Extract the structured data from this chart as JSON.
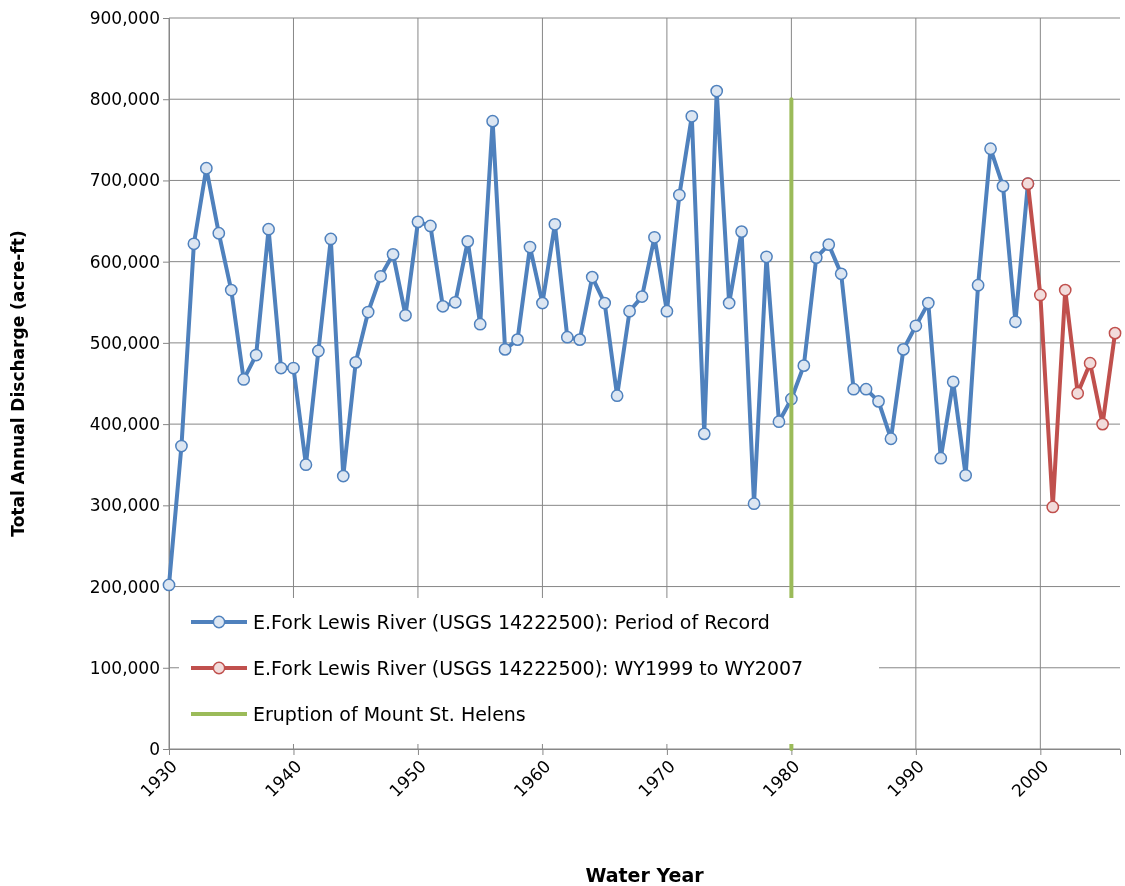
{
  "chart_data": {
    "type": "line",
    "xlabel": "Water Year",
    "ylabel": "Total Annual Discharge (acre-ft)",
    "xlim": [
      1930,
      2006.4
    ],
    "xticks": [
      1930,
      1940,
      1950,
      1960,
      1970,
      1980,
      1990,
      2000
    ],
    "ylim": [
      0,
      900000
    ],
    "yticks": [
      {
        "value": 0,
        "label": "0"
      },
      {
        "value": 100000,
        "label": "100,000"
      },
      {
        "value": 200000,
        "label": "200,000"
      },
      {
        "value": 300000,
        "label": "300,000"
      },
      {
        "value": 400000,
        "label": "400,000"
      },
      {
        "value": 500000,
        "label": "500,000"
      },
      {
        "value": 600000,
        "label": "600,000"
      },
      {
        "value": 700000,
        "label": "700,000"
      },
      {
        "value": 800000,
        "label": "800,000"
      },
      {
        "value": 900000,
        "label": "900,000"
      }
    ],
    "grid": true,
    "legend": "bottom left",
    "marker": "circle",
    "line_style": "solid",
    "series": [
      {
        "name": "E.Fork Lewis River (USGS 14222500): Period of Record",
        "color": "#4f81bd",
        "x": [
          1930,
          1931,
          1932,
          1933,
          1934,
          1935,
          1936,
          1937,
          1938,
          1939,
          1940,
          1941,
          1942,
          1943,
          1944,
          1945,
          1946,
          1947,
          1948,
          1949,
          1950,
          1951,
          1952,
          1953,
          1954,
          1955,
          1956,
          1957,
          1958,
          1959,
          1960,
          1961,
          1962,
          1963,
          1964,
          1965,
          1966,
          1967,
          1968,
          1969,
          1970,
          1971,
          1972,
          1973,
          1974,
          1975,
          1976,
          1977,
          1978,
          1979,
          1980,
          1981,
          1982,
          1983,
          1984,
          1985,
          1986,
          1987,
          1988,
          1989,
          1990,
          1991,
          1992,
          1993,
          1994,
          1995,
          1996,
          1997,
          1998,
          1999
        ],
        "values": [
          202000,
          373000,
          622000,
          715000,
          635000,
          565000,
          455000,
          485000,
          640000,
          469000,
          469000,
          350000,
          490000,
          628000,
          336000,
          476000,
          538000,
          582000,
          609000,
          534000,
          649000,
          644000,
          545000,
          550000,
          625000,
          523000,
          773000,
          492000,
          504000,
          618000,
          549000,
          646000,
          507000,
          504000,
          581000,
          549000,
          435000,
          539000,
          557000,
          630000,
          539000,
          682000,
          779000,
          388000,
          810000,
          549000,
          637000,
          302000,
          606000,
          403000,
          431000,
          472000,
          605000,
          621000,
          585000,
          443000,
          443000,
          428000,
          382000,
          492000,
          521000,
          549000,
          358000,
          452000,
          337000,
          571000,
          739000,
          693000,
          526000,
          696000
        ]
      },
      {
        "name": "E.Fork Lewis River (USGS 14222500): WY1999 to WY2007",
        "color": "#c0504d",
        "x": [
          1999,
          2000,
          2001,
          2002,
          2003,
          2004,
          2005,
          2006
        ],
        "values": [
          696000,
          559000,
          298000,
          565000,
          438000,
          475000,
          400000,
          512000
        ]
      },
      {
        "name": "Eruption of Mount St. Helens",
        "color": "#9bbb59",
        "marker": "none",
        "x": [
          1980,
          1980
        ],
        "values": [
          0,
          800000
        ]
      }
    ]
  }
}
